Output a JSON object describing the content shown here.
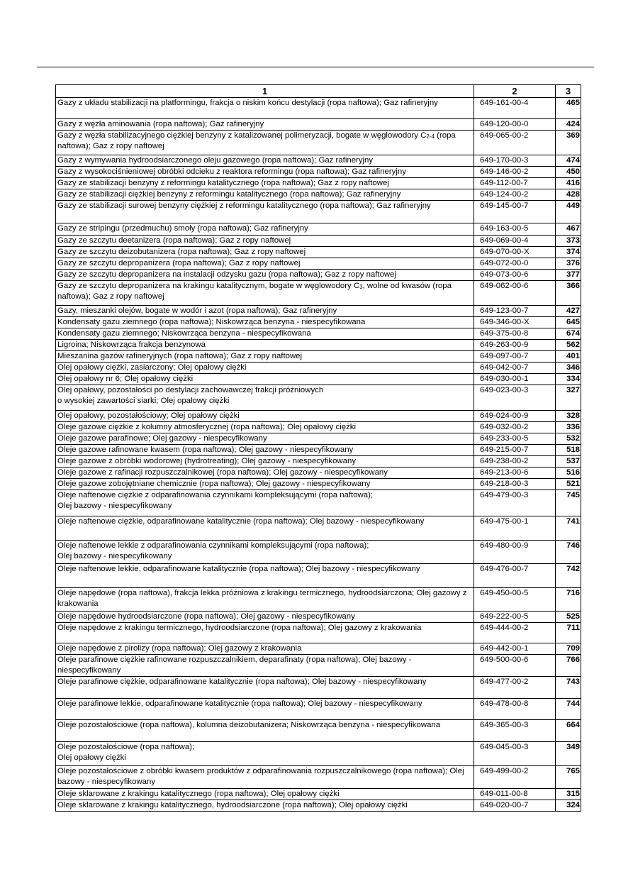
{
  "header": {
    "col1": "1",
    "col2": "2",
    "col3": "3"
  },
  "rows": [
    {
      "name": "Gazy z układu stabilizacji na platformingu, frakcja o niskim końcu destylacji (ropa naftowa); Gaz rafineryjny",
      "index": "649-161-00-4",
      "no": "465"
    },
    {
      "name": "Gazy z węzła aminowania (ropa naftowa); Gaz rafineryjny",
      "index": "649-120-00-0",
      "no": "424"
    },
    {
      "name": "Gazy z węzła stabilizacyjnego ciężkiej benzyny z katalizowanej polimeryzacji, bogate w węglowodory C",
      "sub": "2-4",
      "after": " (ropa naftowa); Gaz z ropy naftowej",
      "index": "649-065-00-2",
      "no": "369"
    },
    {
      "name": "Gazy z wymywania hydroodsiarczonego oleju gazowego (ropa naftowa); Gaz rafineryjny",
      "index": "649-170-00-3",
      "no": "474"
    },
    {
      "name": "Gazy z wysokociśnieniowej obróbki odcieku z reaktora reformingu (ropa naftowa); Gaz rafineryjny",
      "index": "649-146-00-2",
      "no": "450"
    },
    {
      "name": "Gazy ze stabilizacji benzyny z reformingu katalitycznego (ropa naftowa); Gaz z ropy naftowej",
      "index": "649-112-00-7",
      "no": "416"
    },
    {
      "name": "Gazy ze stabilizacji ciężkiej benzyny z reformingu katalitycznego (ropa naftowa); Gaz rafineryjny",
      "index": "649-124-00-2",
      "no": "428"
    },
    {
      "name": "Gazy ze stabilizacji surowej benzyny ciężkiej z reformingu katalitycznego (ropa naftowa); Gaz rafineryjny",
      "index": "649-145-00-7",
      "no": "449"
    },
    {
      "name": "Gazy ze stripingu (przedmuchu) smoły (ropa naftowa); Gaz rafineryjny",
      "index": "649-163-00-5",
      "no": "467"
    },
    {
      "name": "Gazy ze szczytu deetanizera (ropa naftowa); Gaz z ropy naftowej",
      "index": "649-069-00-4",
      "no": "373"
    },
    {
      "name": "Gazy ze szczytu deizobutanizera (ropa naftowa); Gaz z ropy naftowej",
      "index": "649-070-00-X",
      "no": "374"
    },
    {
      "name": "Gazy ze szczytu depropanizera (ropa naftowa); Gaz z ropy naftowej",
      "index": "649-072-00-0",
      "no": "376"
    },
    {
      "name": "Gazy ze szczytu depropanizera na instalacji odzysku gazu (ropa naftowa); Gaz z ropy naftowej",
      "index": "649-073-00-6",
      "no": "377"
    },
    {
      "name": "Gazy ze szczytu depropanizera na krakingu katalitycznym, bogate w węglowodory C",
      "sub": "3",
      "after": ", wolne od kwasów (ropa naftowa); Gaz z ropy naftowej",
      "index": "649-062-00-6",
      "no": "366"
    },
    {
      "name": "Gazy, mieszanki olejów, bogate w wodór i azot (ropa naftowa); Gaz rafineryjny",
      "index": "649-123-00-7",
      "no": "427"
    },
    {
      "name": "Kondensaty gazu ziemnego (ropa naftowa); Niskowrząca benzyna - niespecyfikowana",
      "index": "649-346-00-X",
      "no": "645"
    },
    {
      "name": "Kondensaty gazu ziemnego; Niskowrząca benzyna - niespecyfikowana",
      "index": "649-375-00-8",
      "no": "674"
    },
    {
      "name": "Ligroina; Niskowrząca frakcja benzynowa",
      "index": "649-263-00-9",
      "no": "562"
    },
    {
      "name": "Mieszanina gazów rafineryjnych (ropa naftowa); Gaz z ropy naftowej",
      "index": "649-097-00-7",
      "no": "401"
    },
    {
      "name": "Olej opałowy ciężki, zasiarczony; Olej opałowy ciężki",
      "index": "649-042-00-7",
      "no": "346"
    },
    {
      "name": "Olej opałowy nr 6; Olej opałowy ciężki",
      "index": "649-030-00-1",
      "no": "334"
    },
    {
      "name": "Olej opałowy, pozostałości po destylacji zachowawczej frakcji próżniowych",
      "line2": "o wysokiej zawartości siarki; Olej opałowy ciężki",
      "index": "649-023-00-3",
      "no": "327"
    },
    {
      "name": "Olej opałowy, pozostałościowy; Olej opałowy ciężki",
      "index": "649-024-00-9",
      "no": "328"
    },
    {
      "name": "Oleje gazowe ciężkie z kolumny atmosferycznej (ropa naftowa); Olej opałowy ciężki",
      "index": "649-032-00-2",
      "no": "336"
    },
    {
      "name": "Oleje gazowe parafinowe; Olej gazowy - niespecyfikowany",
      "index": "649-233-00-5",
      "no": "532"
    },
    {
      "name": "Oleje gazowe rafinowane kwasem (ropa naftowa); Olej gazowy - niespecyfikowany",
      "index": "649-215-00-7",
      "no": "518"
    },
    {
      "name": "Oleje gazowe z obróbki wodorowej (hydrotreating); Olej gazowy - niespecyfikowany",
      "index": "649-238-00-2",
      "no": "537"
    },
    {
      "name": "Oleje gazowe z rafinacji rozpuszczalnikowej (ropa naftowa); Olej gazowy - niespecyfikowany",
      "index": "649-213-00-6",
      "no": "516"
    },
    {
      "name": "Oleje gazowe zobojętniane chemicznie (ropa naftowa); Olej gazowy - niespecyfikowany",
      "index": "649-218-00-3",
      "no": "521"
    },
    {
      "name": "Oleje naftenowe ciężkie z odparafinowania czynnikami kompleksującymi (ropa naftowa);",
      "line2": "Olej bazowy - niespecyfikowany",
      "index": "649-479-00-3",
      "no": "745"
    },
    {
      "name": "Oleje naftenowe ciężkie, odparafinowane katalitycznie (ropa naftowa); Olej bazowy - niespecyfikowany",
      "index": "649-475-00-1",
      "no": "741"
    },
    {
      "name": "Oleje naftenowe lekkie z odparafinowania czynnikami kompleksującymi (ropa naftowa);",
      "line2": "Olej bazowy - niespecyfikowany",
      "index": "649-480-00-9",
      "no": "746"
    },
    {
      "name": "Oleje naftenowe lekkie, odparafinowane katalitycznie (ropa naftowa); Olej bazowy - niespecyfikowany",
      "index": "649-476-00-7",
      "no": "742"
    },
    {
      "name": "Oleje napędowe (ropa naftowa), frakcja lekka próżniowa z krakingu termicznego, hydroodsiarczona; Olej gazowy z krakowania",
      "index": "649-450-00-5",
      "no": "716"
    },
    {
      "name": "Oleje napędowe hydroodsiarczone (ropa naftowa); Olej gazowy - niespecyfikowany",
      "index": "649-222-00-5",
      "no": "525"
    },
    {
      "name": "Oleje napędowe z krakingu termicznego, hydroodsiarczone (ropa naftowa); Olej gazowy z krakowania",
      "index": "649-444-00-2",
      "no": "711"
    },
    {
      "name": "Oleje napędowe z pirolizy (ropa naftowa); Olej gazowy z krakowania",
      "index": "649-442-00-1",
      "no": "709"
    },
    {
      "name": "Oleje parafinowe ciężkie rafinowane rozpuszczalnikiem, deparafinaty (ropa naftowa); Olej bazowy - niespecyfikowany",
      "index": "649-500-00-6",
      "no": "766"
    },
    {
      "name": "Oleje parafinowe ciężkie, odparafinowane katalitycznie (ropa naftowa); Olej bazowy - niespecyfikowany",
      "index": "649-477-00-2",
      "no": "743"
    },
    {
      "name": "Oleje parafinowe lekkie, odparafinowane katalitycznie (ropa naftowa); Olej bazowy - niespecyfikowany",
      "index": "649-478-00-8",
      "no": "744"
    },
    {
      "name": "Oleje pozostałościowe (ropa naftowa), kolumna deizobutanizera; Niskowrząca benzyna - niespecyfikowana",
      "index": "649-365-00-3",
      "no": "664"
    },
    {
      "name": "Oleje pozostałościowe (ropa naftowa);",
      "line2": "Olej opałowy ciężki",
      "index": "649-045-00-3",
      "no": "349"
    },
    {
      "name": "Oleje pozostałościowe z obróbki kwasem produktów z odparafinowania rozpuszczalnikowego (ropa naftowa); Olej bazowy - niespecyfikowany",
      "index": "649-499-00-2",
      "no": "765"
    },
    {
      "name": "Oleje sklarowane z krakingu katalitycznego (ropa naftowa); Olej opałowy ciężki",
      "index": "649-011-00-8",
      "no": "315"
    },
    {
      "name": "Oleje sklarowane z krakingu katalitycznego, hydroodsiarczone (ropa naftowa); Olej opałowy ciężki",
      "index": "649-020-00-7",
      "no": "324"
    }
  ]
}
